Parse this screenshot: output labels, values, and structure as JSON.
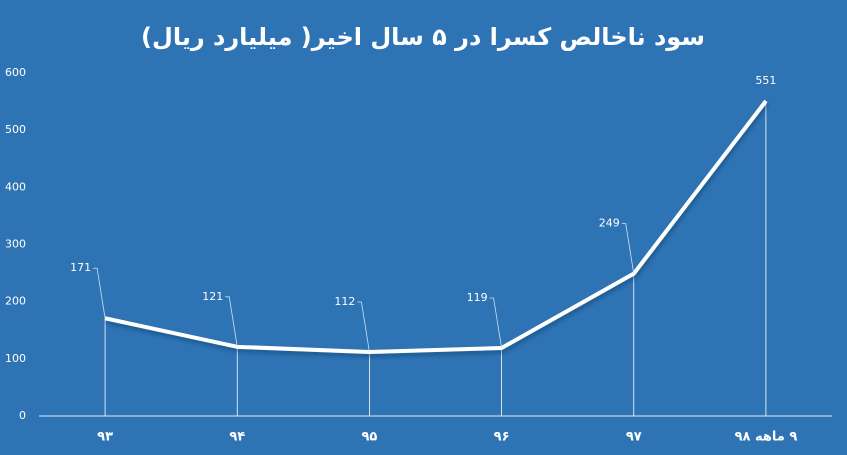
{
  "chart_data": {
    "type": "line",
    "title": "سود ناخالص کسرا در ۵ سال اخیر( میلیارد ریال)",
    "categories": [
      "۹۳",
      "۹۴",
      "۹۵",
      "۹۶",
      "۹۷",
      "۹ ماهه ۹۸"
    ],
    "values": [
      171,
      121,
      112,
      119,
      249,
      551
    ],
    "color": "#ffffff",
    "ylim": [
      0,
      600
    ],
    "yticks": [
      0,
      100,
      200,
      300,
      400,
      500,
      600
    ],
    "drop_lines": true,
    "data_labels": true
  }
}
